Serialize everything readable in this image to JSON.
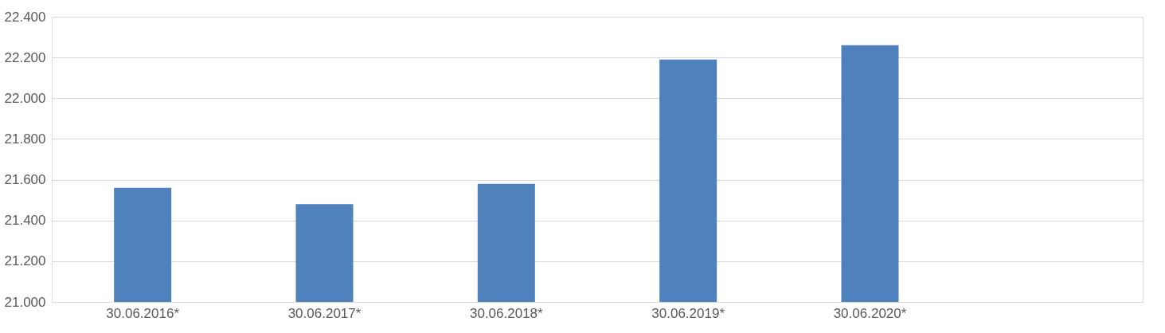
{
  "chart_data": {
    "type": "bar",
    "categories": [
      "30.06.2016*",
      "30.06.2017*",
      "30.06.2018*",
      "30.06.2019*",
      "30.06.2020*",
      null
    ],
    "values": [
      21560,
      21480,
      21580,
      22190,
      22260,
      null
    ],
    "color": "#4f81bd",
    "ylim": [
      21000,
      22400
    ],
    "yticks": [
      {
        "value": 21000,
        "label": "21.000"
      },
      {
        "value": 21200,
        "label": "21.200"
      },
      {
        "value": 21400,
        "label": "21.400"
      },
      {
        "value": 21600,
        "label": "21.600"
      },
      {
        "value": 21800,
        "label": "21.800"
      },
      {
        "value": 22000,
        "label": "22.000"
      },
      {
        "value": 22200,
        "label": "22.200"
      },
      {
        "value": 22400,
        "label": "22.400"
      }
    ],
    "grid": "y"
  }
}
